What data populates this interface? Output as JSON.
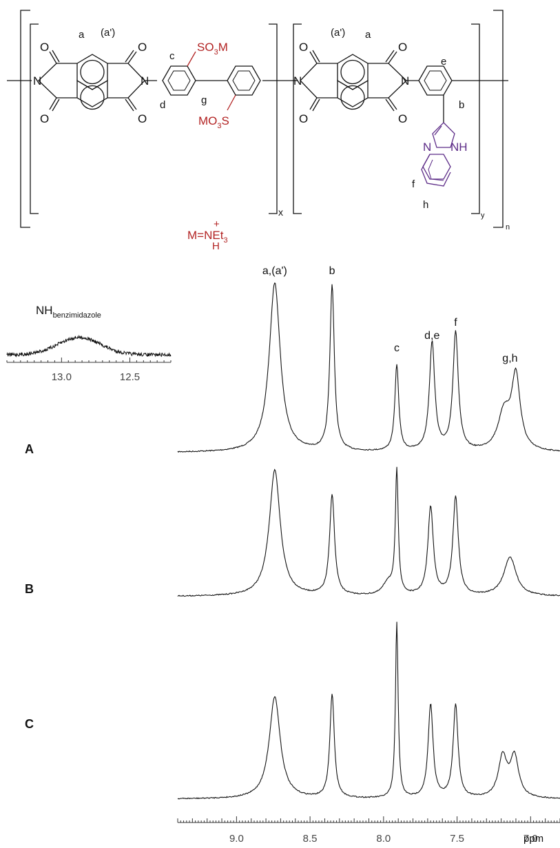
{
  "structure": {
    "atoms": {
      "O": "O",
      "N": "N",
      "NH": "NH",
      "SO3M_a": "SO",
      "SO3M_b": "M",
      "MO3S_a": "MO",
      "MO3S_b": "S",
      "sub3": "3"
    },
    "labels": {
      "a": "a",
      "a_prime": "(a')",
      "b": "b",
      "c": "c",
      "d": "d",
      "e": "e",
      "f": "f",
      "g": "g",
      "h": "h"
    },
    "subscripts": {
      "x": "x",
      "y": "y",
      "n": "n"
    },
    "counterion": {
      "plus": "+",
      "main": "M=NEt",
      "sub": "3",
      "h": "H"
    },
    "colors": {
      "sulfonate": "#b22222",
      "benzimidazole": "#5b2a86",
      "line": "#111111"
    }
  },
  "chart_data": {
    "type": "line",
    "xlabel": "ppm",
    "x_reversed": true,
    "xlim": [
      9.4,
      6.8
    ],
    "xticks": [
      "9.0",
      "8.5",
      "8.0",
      "7.5",
      "7.0"
    ],
    "xtick_values": [
      9.0,
      8.5,
      8.0,
      7.5,
      7.0
    ],
    "peak_labels": [
      {
        "text": "a,(a')",
        "ppm": 8.74
      },
      {
        "text": "b",
        "ppm": 8.35
      },
      {
        "text": "c",
        "ppm": 7.91
      },
      {
        "text": "d,e",
        "ppm": 7.67
      },
      {
        "text": "f",
        "ppm": 7.51
      },
      {
        "text": "g,h",
        "ppm": 7.14
      }
    ],
    "series": [
      {
        "name": "A",
        "peaks": [
          {
            "ppm": 8.74,
            "h": 1.0,
            "w": 0.045
          },
          {
            "ppm": 8.35,
            "h": 0.98,
            "w": 0.018
          },
          {
            "ppm": 7.91,
            "h": 0.51,
            "w": 0.016
          },
          {
            "ppm": 7.67,
            "h": 0.64,
            "w": 0.022
          },
          {
            "ppm": 7.51,
            "h": 0.7,
            "w": 0.022
          },
          {
            "ppm": 7.18,
            "h": 0.22,
            "w": 0.05
          },
          {
            "ppm": 7.1,
            "h": 0.43,
            "w": 0.035
          }
        ]
      },
      {
        "name": "B",
        "peaks": [
          {
            "ppm": 8.74,
            "h": 1.0,
            "w": 0.045
          },
          {
            "ppm": 8.35,
            "h": 0.8,
            "w": 0.02
          },
          {
            "ppm": 7.97,
            "h": 0.1,
            "w": 0.04
          },
          {
            "ppm": 7.91,
            "h": 0.98,
            "w": 0.012
          },
          {
            "ppm": 7.68,
            "h": 0.7,
            "w": 0.022
          },
          {
            "ppm": 7.51,
            "h": 0.78,
            "w": 0.022
          },
          {
            "ppm": 7.14,
            "h": 0.31,
            "w": 0.05
          }
        ]
      },
      {
        "name": "C",
        "peaks": [
          {
            "ppm": 8.74,
            "h": 0.58,
            "w": 0.045
          },
          {
            "ppm": 8.35,
            "h": 0.59,
            "w": 0.018
          },
          {
            "ppm": 7.91,
            "h": 1.0,
            "w": 0.011
          },
          {
            "ppm": 7.68,
            "h": 0.53,
            "w": 0.02
          },
          {
            "ppm": 7.51,
            "h": 0.53,
            "w": 0.02
          },
          {
            "ppm": 7.19,
            "h": 0.23,
            "w": 0.035
          },
          {
            "ppm": 7.11,
            "h": 0.23,
            "w": 0.035
          }
        ]
      }
    ],
    "inset": {
      "label_main": "NH",
      "label_sub": "benzimidazole",
      "xlim": [
        13.4,
        12.2
      ],
      "xticks": [
        "13.0",
        "12.5"
      ],
      "xtick_values": [
        13.0,
        12.5
      ],
      "peak": {
        "ppm": 12.87,
        "h": 0.6,
        "w": 0.22
      }
    }
  }
}
